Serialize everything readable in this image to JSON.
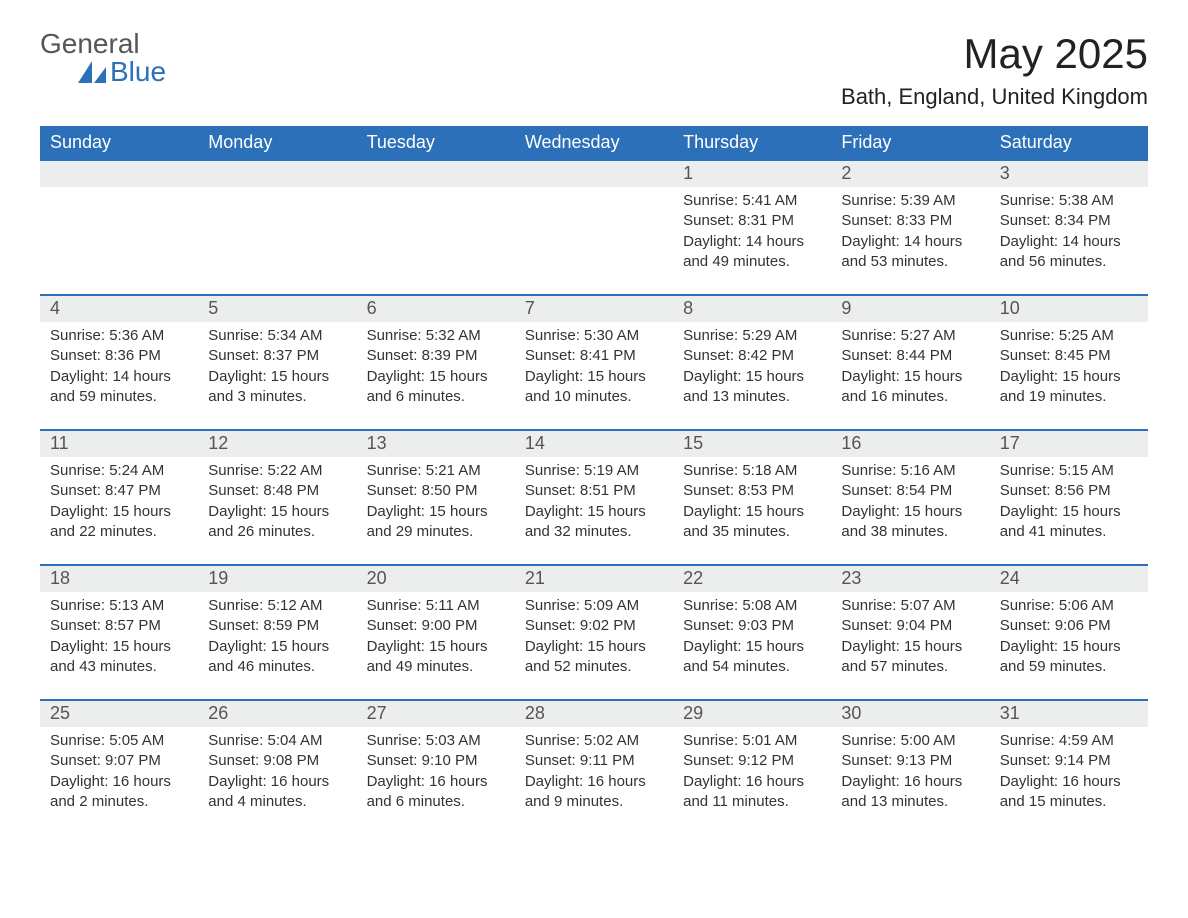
{
  "brand": {
    "general": "General",
    "blue": "Blue",
    "sail_color": "#2b70b8"
  },
  "title": "May 2025",
  "location": "Bath, England, United Kingdom",
  "colors": {
    "header_bg": "#2b70b8",
    "header_text": "#ffffff",
    "daynum_bg": "#eceded",
    "body_bg": "#ffffff",
    "text": "#333333"
  },
  "fonts": {
    "title_size": 42,
    "location_size": 22,
    "dow_size": 18,
    "daynum_size": 18,
    "body_size": 15
  },
  "days_of_week": [
    "Sunday",
    "Monday",
    "Tuesday",
    "Wednesday",
    "Thursday",
    "Friday",
    "Saturday"
  ],
  "weeks": [
    [
      null,
      null,
      null,
      null,
      {
        "n": "1",
        "sunrise": "5:41 AM",
        "sunset": "8:31 PM",
        "daylight": "14 hours and 49 minutes."
      },
      {
        "n": "2",
        "sunrise": "5:39 AM",
        "sunset": "8:33 PM",
        "daylight": "14 hours and 53 minutes."
      },
      {
        "n": "3",
        "sunrise": "5:38 AM",
        "sunset": "8:34 PM",
        "daylight": "14 hours and 56 minutes."
      }
    ],
    [
      {
        "n": "4",
        "sunrise": "5:36 AM",
        "sunset": "8:36 PM",
        "daylight": "14 hours and 59 minutes."
      },
      {
        "n": "5",
        "sunrise": "5:34 AM",
        "sunset": "8:37 PM",
        "daylight": "15 hours and 3 minutes."
      },
      {
        "n": "6",
        "sunrise": "5:32 AM",
        "sunset": "8:39 PM",
        "daylight": "15 hours and 6 minutes."
      },
      {
        "n": "7",
        "sunrise": "5:30 AM",
        "sunset": "8:41 PM",
        "daylight": "15 hours and 10 minutes."
      },
      {
        "n": "8",
        "sunrise": "5:29 AM",
        "sunset": "8:42 PM",
        "daylight": "15 hours and 13 minutes."
      },
      {
        "n": "9",
        "sunrise": "5:27 AM",
        "sunset": "8:44 PM",
        "daylight": "15 hours and 16 minutes."
      },
      {
        "n": "10",
        "sunrise": "5:25 AM",
        "sunset": "8:45 PM",
        "daylight": "15 hours and 19 minutes."
      }
    ],
    [
      {
        "n": "11",
        "sunrise": "5:24 AM",
        "sunset": "8:47 PM",
        "daylight": "15 hours and 22 minutes."
      },
      {
        "n": "12",
        "sunrise": "5:22 AM",
        "sunset": "8:48 PM",
        "daylight": "15 hours and 26 minutes."
      },
      {
        "n": "13",
        "sunrise": "5:21 AM",
        "sunset": "8:50 PM",
        "daylight": "15 hours and 29 minutes."
      },
      {
        "n": "14",
        "sunrise": "5:19 AM",
        "sunset": "8:51 PM",
        "daylight": "15 hours and 32 minutes."
      },
      {
        "n": "15",
        "sunrise": "5:18 AM",
        "sunset": "8:53 PM",
        "daylight": "15 hours and 35 minutes."
      },
      {
        "n": "16",
        "sunrise": "5:16 AM",
        "sunset": "8:54 PM",
        "daylight": "15 hours and 38 minutes."
      },
      {
        "n": "17",
        "sunrise": "5:15 AM",
        "sunset": "8:56 PM",
        "daylight": "15 hours and 41 minutes."
      }
    ],
    [
      {
        "n": "18",
        "sunrise": "5:13 AM",
        "sunset": "8:57 PM",
        "daylight": "15 hours and 43 minutes."
      },
      {
        "n": "19",
        "sunrise": "5:12 AM",
        "sunset": "8:59 PM",
        "daylight": "15 hours and 46 minutes."
      },
      {
        "n": "20",
        "sunrise": "5:11 AM",
        "sunset": "9:00 PM",
        "daylight": "15 hours and 49 minutes."
      },
      {
        "n": "21",
        "sunrise": "5:09 AM",
        "sunset": "9:02 PM",
        "daylight": "15 hours and 52 minutes."
      },
      {
        "n": "22",
        "sunrise": "5:08 AM",
        "sunset": "9:03 PM",
        "daylight": "15 hours and 54 minutes."
      },
      {
        "n": "23",
        "sunrise": "5:07 AM",
        "sunset": "9:04 PM",
        "daylight": "15 hours and 57 minutes."
      },
      {
        "n": "24",
        "sunrise": "5:06 AM",
        "sunset": "9:06 PM",
        "daylight": "15 hours and 59 minutes."
      }
    ],
    [
      {
        "n": "25",
        "sunrise": "5:05 AM",
        "sunset": "9:07 PM",
        "daylight": "16 hours and 2 minutes."
      },
      {
        "n": "26",
        "sunrise": "5:04 AM",
        "sunset": "9:08 PM",
        "daylight": "16 hours and 4 minutes."
      },
      {
        "n": "27",
        "sunrise": "5:03 AM",
        "sunset": "9:10 PM",
        "daylight": "16 hours and 6 minutes."
      },
      {
        "n": "28",
        "sunrise": "5:02 AM",
        "sunset": "9:11 PM",
        "daylight": "16 hours and 9 minutes."
      },
      {
        "n": "29",
        "sunrise": "5:01 AM",
        "sunset": "9:12 PM",
        "daylight": "16 hours and 11 minutes."
      },
      {
        "n": "30",
        "sunrise": "5:00 AM",
        "sunset": "9:13 PM",
        "daylight": "16 hours and 13 minutes."
      },
      {
        "n": "31",
        "sunrise": "4:59 AM",
        "sunset": "9:14 PM",
        "daylight": "16 hours and 15 minutes."
      }
    ]
  ],
  "labels": {
    "sunrise": "Sunrise: ",
    "sunset": "Sunset: ",
    "daylight": "Daylight: "
  }
}
